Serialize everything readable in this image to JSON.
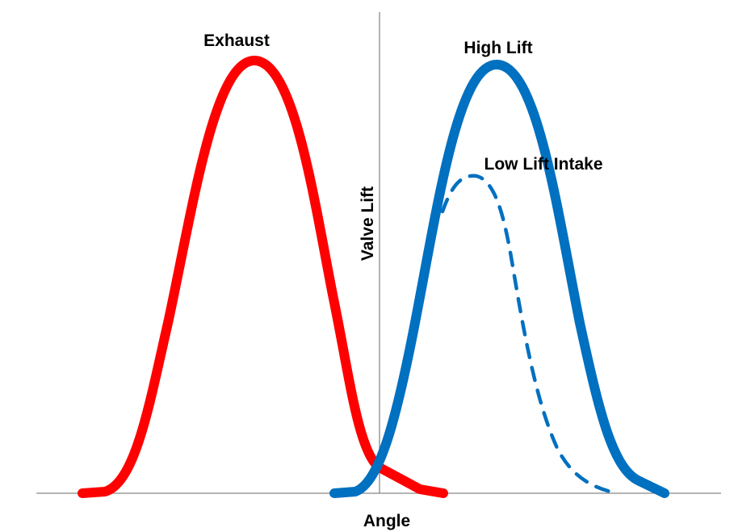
{
  "labels": {
    "exhaust": "Exhaust",
    "high_lift": "High Lift",
    "low_lift": "Low Lift Intake",
    "y_axis": "Valve Lift",
    "x_axis": "Angle"
  },
  "colors": {
    "exhaust": "#ff0000",
    "intake": "#0070c0",
    "axis": "#888888"
  },
  "line_styles": {
    "exhaust": "solid",
    "high_lift": "solid",
    "low_lift": "dashed"
  }
}
